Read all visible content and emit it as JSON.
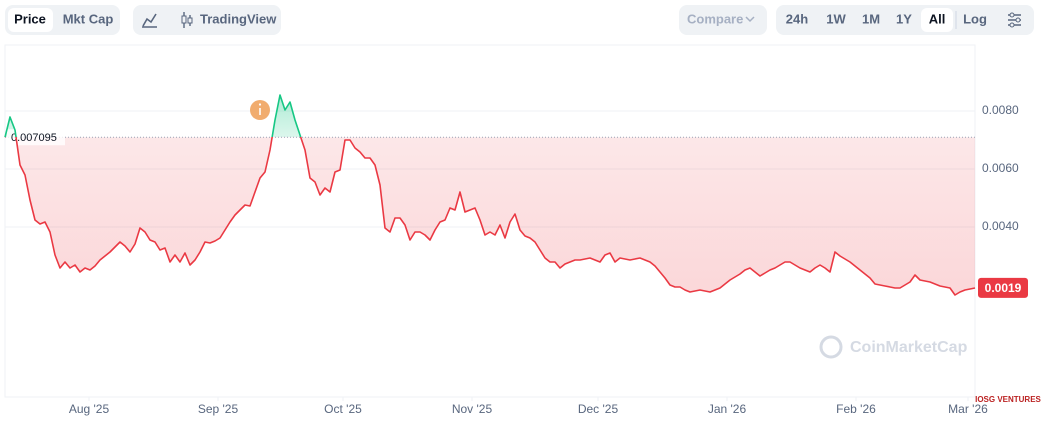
{
  "toolbar": {
    "tabs": [
      "Price",
      "Mkt Cap"
    ],
    "chart_view": "TradingView",
    "compare": "Compare",
    "ranges": [
      "24h",
      "1W",
      "1M",
      "1Y",
      "All",
      "Log"
    ]
  },
  "chart_data": {
    "type": "line",
    "series": [
      {
        "name": "Price",
        "color": "#ea3943",
        "up_color": "#16c784",
        "values": [
          0.007095,
          0.007793,
          0.007345,
          0.006138,
          0.005793,
          0.004931,
          0.004241,
          0.004103,
          0.004172,
          0.003828,
          0.003034,
          0.002586,
          0.002793,
          0.002586,
          0.00269,
          0.002448,
          0.002586,
          0.002517,
          0.002655,
          0.002862,
          0.003,
          0.003138,
          0.00331,
          0.003483,
          0.003345,
          0.003138,
          0.003414,
          0.003966,
          0.003828,
          0.003552,
          0.003483,
          0.003207,
          0.003276,
          0.002793,
          0.003034,
          0.002793,
          0.003103,
          0.00269,
          0.002862,
          0.003138,
          0.003483,
          0.003448,
          0.003517,
          0.003621,
          0.003897,
          0.004172,
          0.004414,
          0.004586,
          0.004759,
          0.004724,
          0.005207,
          0.00569,
          0.005897,
          0.006655,
          0.00769,
          0.008552,
          0.008034,
          0.00831,
          0.00769,
          0.007172,
          0.006655,
          0.00569,
          0.005552,
          0.005103,
          0.005345,
          0.005207,
          0.005897,
          0.005966,
          0.007,
          0.007,
          0.006724,
          0.006586,
          0.006379,
          0.006379,
          0.006138,
          0.005448,
          0.003966,
          0.003828,
          0.00431,
          0.00431,
          0.004069,
          0.003552,
          0.003828,
          0.003828,
          0.003724,
          0.003552,
          0.003897,
          0.004172,
          0.004241,
          0.004655,
          0.004586,
          0.005207,
          0.004517,
          0.004586,
          0.004655,
          0.004241,
          0.003724,
          0.003828,
          0.003724,
          0.004069,
          0.003621,
          0.004172,
          0.004448,
          0.003897,
          0.00369,
          0.003621,
          0.003483,
          0.003207,
          0.002931,
          0.002793,
          0.002793,
          0.002586,
          0.002724,
          0.002793,
          0.002862,
          0.002862,
          0.002897,
          0.002931,
          0.002862,
          0.002793,
          0.003034,
          0.003103,
          0.002793,
          0.002931,
          0.002897,
          0.002862,
          0.002897,
          0.002931,
          0.002862,
          0.002793,
          0.002655,
          0.002448,
          0.002241,
          0.002,
          0.001931,
          0.001931,
          0.001828,
          0.001759,
          0.001793,
          0.001828,
          0.001793,
          0.001759,
          0.001828,
          0.001897,
          0.002034,
          0.002172,
          0.002276,
          0.002379,
          0.002517,
          0.002586,
          0.002448,
          0.00231,
          0.002414,
          0.002517,
          0.002586,
          0.00269,
          0.002793,
          0.002793,
          0.00269,
          0.002586,
          0.002517,
          0.002448,
          0.002586,
          0.00269,
          0.002586,
          0.002448,
          0.003138,
          0.003,
          0.002897,
          0.002793,
          0.002655,
          0.002517,
          0.002379,
          0.002241,
          0.002034,
          0.002,
          0.001966,
          0.001931,
          0.001897,
          0.001897,
          0.002,
          0.002103,
          0.002345,
          0.002172,
          0.002138,
          0.002103,
          0.002034,
          0.001966,
          0.001931,
          0.001897,
          0.001655,
          0.001759,
          0.001828,
          0.001862,
          0.001897
        ]
      }
    ],
    "reference": 0.007095,
    "current_price": 0.0019,
    "xlim": [
      0,
      194
    ],
    "xticks": [
      {
        "value": 16.8,
        "label": "Aug '25"
      },
      {
        "value": 42.6,
        "label": "Sep '25"
      },
      {
        "value": 67.6,
        "label": "Oct '25"
      },
      {
        "value": 93.4,
        "label": "Nov '25"
      },
      {
        "value": 118.6,
        "label": "Dec '25"
      },
      {
        "value": 144.4,
        "label": "Jan '26"
      },
      {
        "value": 170.2,
        "label": "Feb '26"
      },
      {
        "value": 192.6,
        "label": "Mar '26"
      }
    ],
    "ylim": [
      -0.002,
      0.01
    ],
    "yticks": [
      {
        "value": 0.004,
        "label": "0.0040"
      },
      {
        "value": 0.006,
        "label": "0.0060"
      },
      {
        "value": 0.008,
        "label": "0.0080"
      }
    ],
    "grid": true,
    "watermark": "CoinMarketCap",
    "badge": "IOSG VENTURES"
  }
}
